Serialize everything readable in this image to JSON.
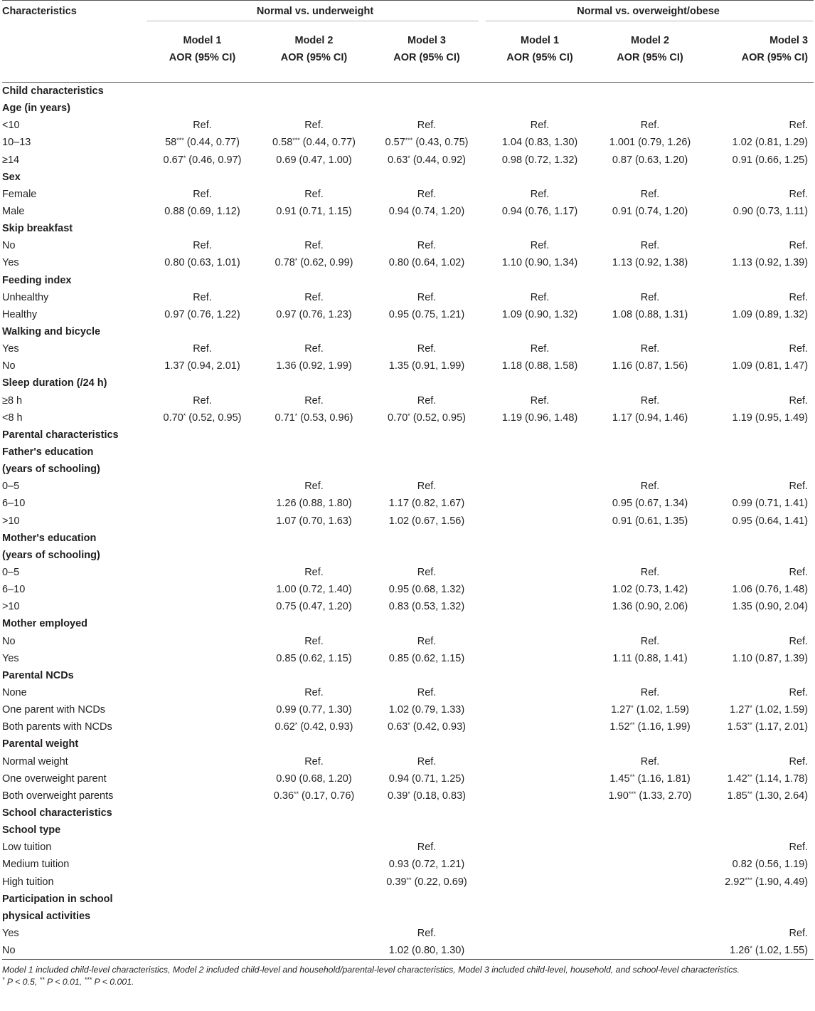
{
  "header": {
    "characteristics": "Characteristics",
    "group_underweight": "Normal vs. underweight",
    "group_overweight": "Normal vs. overweight/obese",
    "models": [
      "Model 1",
      "Model 2",
      "Model 3",
      "Model 1",
      "Model 2",
      "Model 3"
    ],
    "measure": "AOR (95% CI)"
  },
  "rows": [
    {
      "type": "section",
      "label": "Child characteristics"
    },
    {
      "type": "subheader",
      "label": "Age (in years)"
    },
    {
      "type": "data",
      "label": "<10",
      "values": [
        "Ref.",
        "Ref.",
        "Ref.",
        "Ref.",
        "Ref.",
        "Ref."
      ]
    },
    {
      "type": "data",
      "label": "10–13",
      "values": [
        "58*** (0.44, 0.77)",
        "0.58*** (0.44, 0.77)",
        "0.57*** (0.43, 0.75)",
        "1.04 (0.83, 1.30)",
        "1.001 (0.79, 1.26)",
        "1.02 (0.81, 1.29)"
      ]
    },
    {
      "type": "data",
      "label": "≥14",
      "values": [
        "0.67* (0.46, 0.97)",
        "0.69 (0.47, 1.00)",
        "0.63* (0.44, 0.92)",
        "0.98 (0.72, 1.32)",
        "0.87 (0.63, 1.20)",
        "0.91 (0.66, 1.25)"
      ]
    },
    {
      "type": "subheader",
      "label": "Sex"
    },
    {
      "type": "data",
      "label": "Female",
      "values": [
        "Ref.",
        "Ref.",
        "Ref.",
        "Ref.",
        "Ref.",
        "Ref."
      ]
    },
    {
      "type": "data",
      "label": "Male",
      "values": [
        "0.88 (0.69, 1.12)",
        "0.91 (0.71, 1.15)",
        "0.94 (0.74, 1.20)",
        "0.94 (0.76, 1.17)",
        "0.91 (0.74, 1.20)",
        "0.90 (0.73, 1.11)"
      ]
    },
    {
      "type": "subheader",
      "label": "Skip breakfast"
    },
    {
      "type": "data",
      "label": "No",
      "values": [
        "Ref.",
        "Ref.",
        "Ref.",
        "Ref.",
        "Ref.",
        "Ref."
      ]
    },
    {
      "type": "data",
      "label": "Yes",
      "values": [
        "0.80 (0.63, 1.01)",
        "0.78* (0.62, 0.99)",
        "0.80 (0.64, 1.02)",
        "1.10 (0.90, 1.34)",
        "1.13 (0.92, 1.38)",
        "1.13 (0.92, 1.39)"
      ]
    },
    {
      "type": "subheader",
      "label": "Feeding index"
    },
    {
      "type": "data",
      "label": "Unhealthy",
      "values": [
        "Ref.",
        "Ref.",
        "Ref.",
        "Ref.",
        "Ref.",
        "Ref."
      ]
    },
    {
      "type": "data",
      "label": "Healthy",
      "values": [
        "0.97 (0.76, 1.22)",
        "0.97 (0.76, 1.23)",
        "0.95 (0.75, 1.21)",
        "1.09 (0.90, 1.32)",
        "1.08 (0.88, 1.31)",
        "1.09 (0.89, 1.32)"
      ]
    },
    {
      "type": "subheader",
      "label": "Walking and bicycle"
    },
    {
      "type": "data",
      "label": "Yes",
      "values": [
        "Ref.",
        "Ref.",
        "Ref.",
        "Ref.",
        "Ref.",
        "Ref."
      ]
    },
    {
      "type": "data",
      "label": "No",
      "values": [
        "1.37 (0.94, 2.01)",
        "1.36 (0.92, 1.99)",
        "1.35 (0.91, 1.99)",
        "1.18 (0.88, 1.58)",
        "1.16 (0.87, 1.56)",
        "1.09 (0.81, 1.47)"
      ]
    },
    {
      "type": "subheader",
      "label": "Sleep duration (/24 h)"
    },
    {
      "type": "data",
      "label": "≥8 h",
      "values": [
        "Ref.",
        "Ref.",
        "Ref.",
        "Ref.",
        "Ref.",
        "Ref."
      ]
    },
    {
      "type": "data",
      "label": "<8 h",
      "values": [
        "0.70* (0.52, 0.95)",
        "0.71* (0.53, 0.96)",
        "0.70* (0.52, 0.95)",
        "1.19 (0.96, 1.48)",
        "1.17 (0.94, 1.46)",
        "1.19 (0.95, 1.49)"
      ]
    },
    {
      "type": "section",
      "label": "Parental characteristics"
    },
    {
      "type": "subheader",
      "label": "Father's education"
    },
    {
      "type": "subheader",
      "label": "(years of schooling)"
    },
    {
      "type": "data",
      "label": "0–5",
      "values": [
        "",
        "Ref.",
        "Ref.",
        "",
        "Ref.",
        "Ref."
      ]
    },
    {
      "type": "data",
      "label": "6–10",
      "values": [
        "",
        "1.26 (0.88, 1.80)",
        "1.17 (0.82, 1.67)",
        "",
        "0.95 (0.67, 1.34)",
        "0.99 (0.71, 1.41)"
      ]
    },
    {
      "type": "data",
      "label": ">10",
      "values": [
        "",
        "1.07 (0.70, 1.63)",
        "1.02 (0.67, 1.56)",
        "",
        "0.91 (0.61, 1.35)",
        "0.95 (0.64, 1.41)"
      ]
    },
    {
      "type": "subheader",
      "label": "Mother's education"
    },
    {
      "type": "subheader",
      "label": "(years of schooling)"
    },
    {
      "type": "data",
      "label": "0–5",
      "values": [
        "",
        "Ref.",
        "Ref.",
        "",
        "Ref.",
        "Ref."
      ]
    },
    {
      "type": "data",
      "label": "6–10",
      "values": [
        "",
        "1.00 (0.72, 1.40)",
        "0.95 (0.68, 1.32)",
        "",
        "1.02 (0.73, 1.42)",
        "1.06 (0.76, 1.48)"
      ]
    },
    {
      "type": "data",
      "label": ">10",
      "values": [
        "",
        "0.75 (0.47, 1.20)",
        "0.83 (0.53, 1.32)",
        "",
        "1.36 (0.90, 2.06)",
        "1.35 (0.90, 2.04)"
      ]
    },
    {
      "type": "subheader",
      "label": "Mother employed"
    },
    {
      "type": "data",
      "label": "No",
      "values": [
        "",
        "Ref.",
        "Ref.",
        "",
        "Ref.",
        "Ref."
      ]
    },
    {
      "type": "data",
      "label": "Yes",
      "values": [
        "",
        "0.85 (0.62, 1.15)",
        "0.85 (0.62, 1.15)",
        "",
        "1.11 (0.88, 1.41)",
        "1.10 (0.87, 1.39)"
      ]
    },
    {
      "type": "subheader",
      "label": "Parental NCDs"
    },
    {
      "type": "data",
      "label": "None",
      "values": [
        "",
        "Ref.",
        "Ref.",
        "",
        "Ref.",
        "Ref."
      ]
    },
    {
      "type": "data",
      "label": "One parent with NCDs",
      "values": [
        "",
        "0.99 (0.77, 1.30)",
        "1.02 (0.79, 1.33)",
        "",
        "1.27* (1.02, 1.59)",
        "1.27* (1.02, 1.59)"
      ]
    },
    {
      "type": "data",
      "label": "Both parents with NCDs",
      "values": [
        "",
        "0.62* (0.42, 0.93)",
        "0.63* (0.42, 0.93)",
        "",
        "1.52** (1.16, 1.99)",
        "1.53** (1.17, 2.01)"
      ]
    },
    {
      "type": "subheader",
      "label": "Parental weight"
    },
    {
      "type": "data",
      "label": "Normal weight",
      "values": [
        "",
        "Ref.",
        "Ref.",
        "",
        "Ref.",
        "Ref."
      ]
    },
    {
      "type": "data",
      "label": "One overweight parent",
      "values": [
        "",
        "0.90 (0.68, 1.20)",
        "0.94 (0.71, 1.25)",
        "",
        "1.45** (1.16, 1.81)",
        "1.42** (1.14, 1.78)"
      ]
    },
    {
      "type": "data",
      "label": "Both overweight parents",
      "values": [
        "",
        "0.36** (0.17, 0.76)",
        "0.39* (0.18, 0.83)",
        "",
        "1.90*** (1.33, 2.70)",
        "1.85** (1.30, 2.64)"
      ]
    },
    {
      "type": "section",
      "label": "School characteristics"
    },
    {
      "type": "subheader",
      "label": "School type"
    },
    {
      "type": "data",
      "label": "Low tuition",
      "values": [
        "",
        "",
        "Ref.",
        "",
        "",
        "Ref."
      ]
    },
    {
      "type": "data",
      "label": "Medium tuition",
      "values": [
        "",
        "",
        "0.93 (0.72, 1.21)",
        "",
        "",
        "0.82 (0.56, 1.19)"
      ]
    },
    {
      "type": "data",
      "label": "High tuition",
      "values": [
        "",
        "",
        "0.39** (0.22, 0.69)",
        "",
        "",
        "2.92*** (1.90, 4.49)"
      ]
    },
    {
      "type": "subheader",
      "label": "Participation in school"
    },
    {
      "type": "subheader",
      "label": "physical activities"
    },
    {
      "type": "data",
      "label": "Yes",
      "values": [
        "",
        "",
        "Ref.",
        "",
        "",
        "Ref."
      ]
    },
    {
      "type": "data",
      "label": "No",
      "values": [
        "",
        "",
        "1.02 (0.80, 1.30)",
        "",
        "",
        "1.26* (1.02, 1.55)"
      ]
    }
  ],
  "footnotes": {
    "models": "Model 1 included child-level characteristics, Model 2 included child-level and household/parental-level characteristics, Model 3 included child-level, household, and school-level characteristics.",
    "significance": "* P < 0.5, ** P < 0.01, *** P < 0.001."
  }
}
